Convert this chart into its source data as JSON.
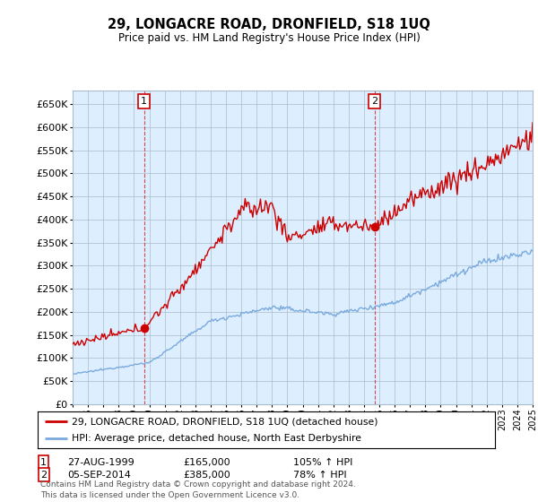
{
  "title": "29, LONGACRE ROAD, DRONFIELD, S18 1UQ",
  "subtitle": "Price paid vs. HM Land Registry's House Price Index (HPI)",
  "ylim": [
    0,
    680000
  ],
  "yticks": [
    0,
    50000,
    100000,
    150000,
    200000,
    250000,
    300000,
    350000,
    400000,
    450000,
    500000,
    550000,
    600000,
    650000
  ],
  "hpi_color": "#7aaadd",
  "price_color": "#cc0000",
  "chart_bg": "#ddeeff",
  "background_color": "#ffffff",
  "grid_color": "#aabbcc",
  "sale1_date": "27-AUG-1999",
  "sale1_price": 165000,
  "sale1_year": 1999.65,
  "sale1_hpi": "105% ↑ HPI",
  "sale1_label": "1",
  "sale2_date": "05-SEP-2014",
  "sale2_price": 385000,
  "sale2_year": 2014.68,
  "sale2_hpi": "78% ↑ HPI",
  "sale2_label": "2",
  "legend_line1": "29, LONGACRE ROAD, DRONFIELD, S18 1UQ (detached house)",
  "legend_line2": "HPI: Average price, detached house, North East Derbyshire",
  "footnote": "Contains HM Land Registry data © Crown copyright and database right 2024.\nThis data is licensed under the Open Government Licence v3.0.",
  "xstart_year": 1995,
  "xend_year": 2025
}
